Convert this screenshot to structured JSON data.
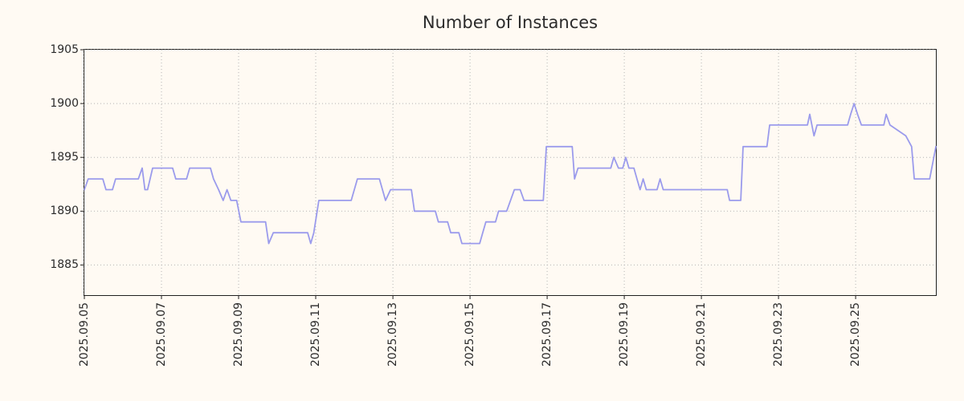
{
  "page": {
    "background": "#fffaf3"
  },
  "chart_data": {
    "type": "line",
    "title": "Number of Instances",
    "xlabel": "",
    "ylabel": "",
    "grid": "dotted",
    "legend": "none",
    "line_color": "#9b9bec",
    "axis_color": "#1f1f1f",
    "grid_color": "#b3b3b3",
    "text_color": "#2b2b2b",
    "ylim": [
      1882.2,
      1905
    ],
    "xlim_days": [
      0,
      22.08
    ],
    "y_ticks": [
      1885,
      1890,
      1895,
      1900,
      1905
    ],
    "x_ticks": [
      {
        "label": "2025.09.05",
        "day": 0
      },
      {
        "label": "2025.09.07",
        "day": 2
      },
      {
        "label": "2025.09.09",
        "day": 4
      },
      {
        "label": "2025.09.11",
        "day": 6
      },
      {
        "label": "2025.09.13",
        "day": 8
      },
      {
        "label": "2025.09.15",
        "day": 10
      },
      {
        "label": "2025.09.17",
        "day": 12
      },
      {
        "label": "2025.09.19",
        "day": 14
      },
      {
        "label": "2025.09.21",
        "day": 16
      },
      {
        "label": "2025.09.23",
        "day": 18
      },
      {
        "label": "2025.09.25",
        "day": 20
      }
    ],
    "series": [
      {
        "name": "instances",
        "points": [
          [
            0.0,
            1892
          ],
          [
            0.1,
            1893
          ],
          [
            0.48,
            1893
          ],
          [
            0.56,
            1892
          ],
          [
            0.73,
            1892
          ],
          [
            0.81,
            1893
          ],
          [
            1.4,
            1893
          ],
          [
            1.5,
            1894
          ],
          [
            1.57,
            1892
          ],
          [
            1.64,
            1892
          ],
          [
            1.77,
            1894
          ],
          [
            2.29,
            1894
          ],
          [
            2.37,
            1893
          ],
          [
            2.65,
            1893
          ],
          [
            2.73,
            1894
          ],
          [
            3.27,
            1894
          ],
          [
            3.35,
            1893
          ],
          [
            3.48,
            1892
          ],
          [
            3.6,
            1891
          ],
          [
            3.7,
            1892
          ],
          [
            3.8,
            1891
          ],
          [
            3.95,
            1891
          ],
          [
            4.06,
            1889
          ],
          [
            4.7,
            1889
          ],
          [
            4.78,
            1887
          ],
          [
            4.9,
            1888
          ],
          [
            5.79,
            1888
          ],
          [
            5.87,
            1887
          ],
          [
            5.95,
            1888
          ],
          [
            6.08,
            1891
          ],
          [
            6.92,
            1891
          ],
          [
            7.08,
            1893
          ],
          [
            7.65,
            1893
          ],
          [
            7.73,
            1892
          ],
          [
            7.81,
            1891
          ],
          [
            7.94,
            1892
          ],
          [
            8.48,
            1892
          ],
          [
            8.56,
            1890
          ],
          [
            9.1,
            1890
          ],
          [
            9.18,
            1889
          ],
          [
            9.42,
            1889
          ],
          [
            9.5,
            1888
          ],
          [
            9.71,
            1888
          ],
          [
            9.79,
            1887
          ],
          [
            10.25,
            1887
          ],
          [
            10.33,
            1888
          ],
          [
            10.41,
            1889
          ],
          [
            10.66,
            1889
          ],
          [
            10.74,
            1890
          ],
          [
            10.95,
            1890
          ],
          [
            11.05,
            1891
          ],
          [
            11.15,
            1892
          ],
          [
            11.3,
            1892
          ],
          [
            11.4,
            1891
          ],
          [
            11.9,
            1891
          ],
          [
            11.98,
            1896
          ],
          [
            12.65,
            1896
          ],
          [
            12.71,
            1893
          ],
          [
            12.8,
            1894
          ],
          [
            13.65,
            1894
          ],
          [
            13.73,
            1895
          ],
          [
            13.85,
            1894
          ],
          [
            13.96,
            1894
          ],
          [
            14.04,
            1895
          ],
          [
            14.12,
            1894
          ],
          [
            14.25,
            1894
          ],
          [
            14.33,
            1893
          ],
          [
            14.41,
            1892
          ],
          [
            14.49,
            1893
          ],
          [
            14.57,
            1892
          ],
          [
            14.85,
            1892
          ],
          [
            14.93,
            1893
          ],
          [
            15.01,
            1892
          ],
          [
            16.67,
            1892
          ],
          [
            16.73,
            1891
          ],
          [
            17.02,
            1891
          ],
          [
            17.08,
            1896
          ],
          [
            17.7,
            1896
          ],
          [
            17.77,
            1898
          ],
          [
            18.75,
            1898
          ],
          [
            18.81,
            1899
          ],
          [
            18.92,
            1897
          ],
          [
            19.0,
            1898
          ],
          [
            19.79,
            1898
          ],
          [
            19.87,
            1899
          ],
          [
            19.96,
            1900
          ],
          [
            20.05,
            1899
          ],
          [
            20.15,
            1898
          ],
          [
            20.73,
            1898
          ],
          [
            20.79,
            1899
          ],
          [
            20.89,
            1898
          ],
          [
            21.3,
            1897
          ],
          [
            21.45,
            1896
          ],
          [
            21.52,
            1893
          ],
          [
            21.92,
            1893
          ],
          [
            22.08,
            1896
          ]
        ]
      }
    ]
  }
}
